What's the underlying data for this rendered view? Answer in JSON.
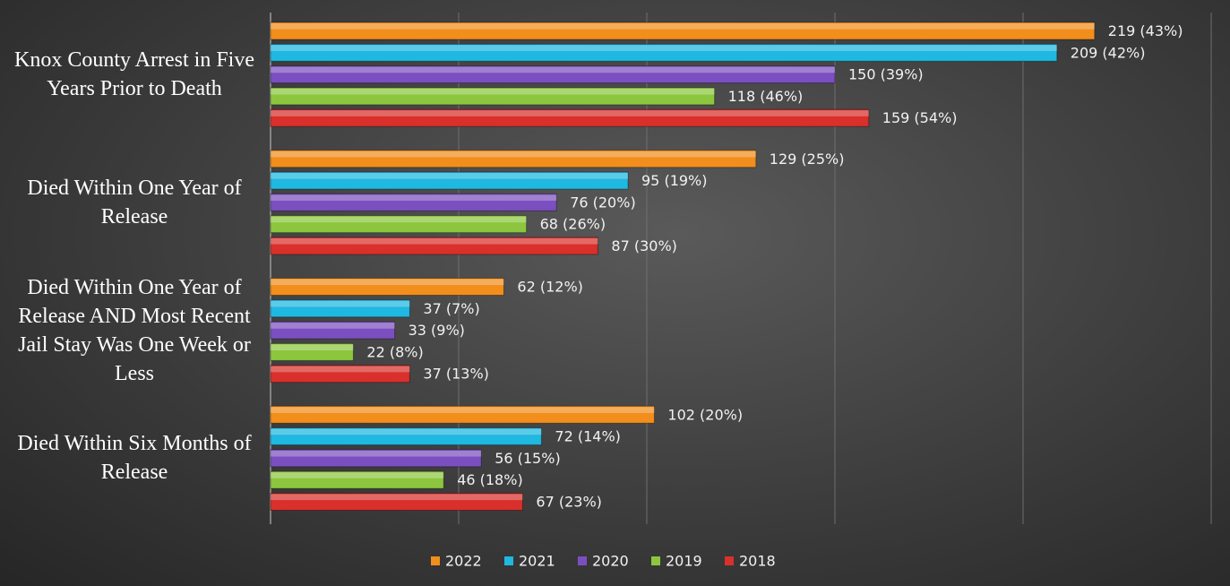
{
  "chart_data": {
    "type": "bar",
    "orientation": "horizontal",
    "categories": [
      "Knox County Arrest in Five Years Prior to Death",
      "Died Within One Year of Release",
      "Died Within One Year of Release AND Most Recent Jail Stay Was One Week or Less",
      "Died Within Six Months of Release"
    ],
    "series": [
      {
        "name": "2022",
        "color": "#f28e1c",
        "values": [
          219,
          129,
          62,
          102
        ],
        "value_labels": [
          "219 (43%)",
          "129 (25%)",
          "62 (12%)",
          "102 (20%)"
        ]
      },
      {
        "name": "2021",
        "color": "#1fb8e0",
        "values": [
          209,
          95,
          37,
          72
        ],
        "value_labels": [
          "209 (42%)",
          "95 (19%)",
          "37 (7%)",
          "72 (14%)"
        ]
      },
      {
        "name": "2020",
        "color": "#7b4fc0",
        "values": [
          150,
          76,
          33,
          56
        ],
        "value_labels": [
          "150 (39%)",
          "76 (20%)",
          "33 (9%)",
          "56 (15%)"
        ]
      },
      {
        "name": "2019",
        "color": "#8cc63f",
        "values": [
          118,
          68,
          22,
          46
        ],
        "value_labels": [
          "118 (46%)",
          "68 (26%)",
          "22 (8%)",
          "46 (18%)"
        ]
      },
      {
        "name": "2018",
        "color": "#d9302c",
        "values": [
          159,
          87,
          37,
          67
        ],
        "value_labels": [
          "159 (54%)",
          "87 (30%)",
          "37 (13%)",
          "67 (23%)"
        ]
      }
    ],
    "xlim": [
      0,
      250
    ],
    "grid": true,
    "legend": "bottom"
  }
}
